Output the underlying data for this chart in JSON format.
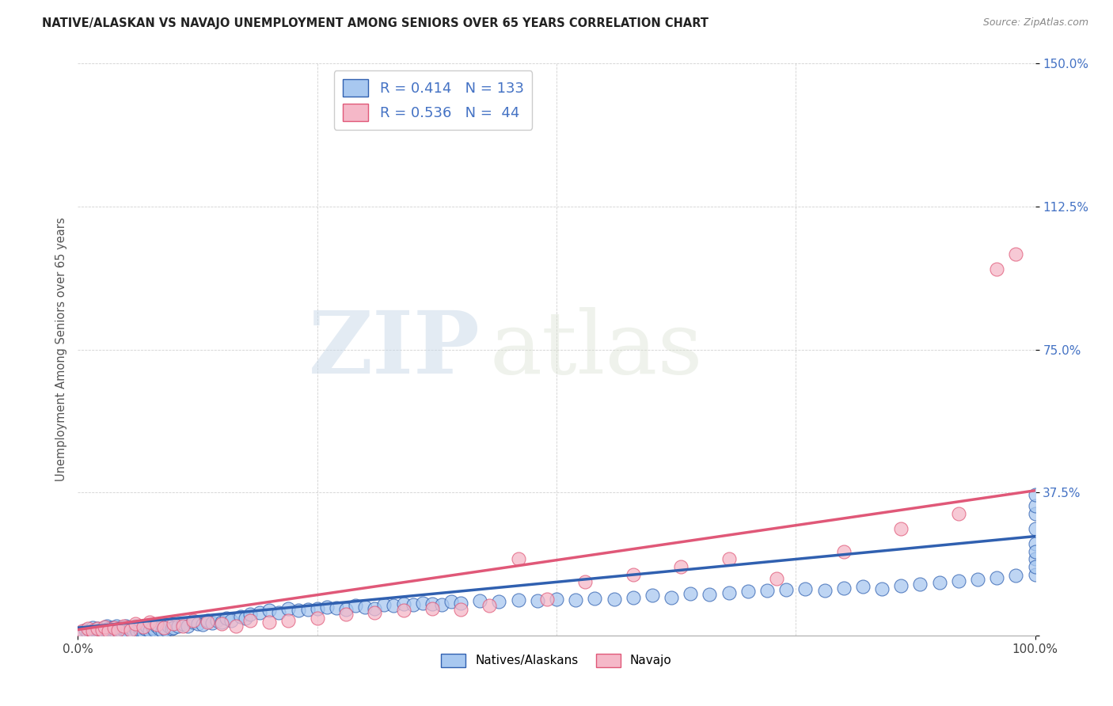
{
  "title": "NATIVE/ALASKAN VS NAVAJO UNEMPLOYMENT AMONG SENIORS OVER 65 YEARS CORRELATION CHART",
  "source": "Source: ZipAtlas.com",
  "ylabel": "Unemployment Among Seniors over 65 years",
  "xlim": [
    0.0,
    1.0
  ],
  "ylim": [
    0.0,
    1.5
  ],
  "xticks": [
    0.0,
    1.0
  ],
  "xticklabels": [
    "0.0%",
    "100.0%"
  ],
  "ytick_positions": [
    0.0,
    0.375,
    0.75,
    1.125,
    1.5
  ],
  "yticklabels": [
    "",
    "37.5%",
    "75.0%",
    "112.5%",
    "150.0%"
  ],
  "native_R": "0.414",
  "native_N": "133",
  "navajo_R": "0.536",
  "navajo_N": "44",
  "native_color": "#A8C8F0",
  "navajo_color": "#F5B8C8",
  "native_line_color": "#3060B0",
  "navajo_line_color": "#E05878",
  "background_color": "#FFFFFF",
  "watermark_zip": "ZIP",
  "watermark_atlas": "atlas",
  "native_x": [
    0.005,
    0.008,
    0.01,
    0.012,
    0.015,
    0.015,
    0.018,
    0.018,
    0.02,
    0.02,
    0.022,
    0.022,
    0.023,
    0.025,
    0.025,
    0.028,
    0.028,
    0.03,
    0.03,
    0.03,
    0.032,
    0.032,
    0.035,
    0.035,
    0.038,
    0.038,
    0.04,
    0.04,
    0.042,
    0.042,
    0.045,
    0.045,
    0.048,
    0.05,
    0.05,
    0.052,
    0.055,
    0.055,
    0.058,
    0.06,
    0.06,
    0.062,
    0.065,
    0.065,
    0.068,
    0.07,
    0.072,
    0.075,
    0.078,
    0.08,
    0.082,
    0.085,
    0.088,
    0.09,
    0.092,
    0.095,
    0.098,
    0.1,
    0.105,
    0.11,
    0.115,
    0.12,
    0.125,
    0.13,
    0.135,
    0.14,
    0.145,
    0.15,
    0.155,
    0.16,
    0.17,
    0.175,
    0.18,
    0.19,
    0.2,
    0.21,
    0.22,
    0.23,
    0.24,
    0.25,
    0.26,
    0.27,
    0.28,
    0.29,
    0.3,
    0.31,
    0.32,
    0.33,
    0.34,
    0.35,
    0.36,
    0.37,
    0.38,
    0.39,
    0.4,
    0.42,
    0.44,
    0.46,
    0.48,
    0.5,
    0.52,
    0.54,
    0.56,
    0.58,
    0.6,
    0.62,
    0.64,
    0.66,
    0.68,
    0.7,
    0.72,
    0.74,
    0.76,
    0.78,
    0.8,
    0.82,
    0.84,
    0.86,
    0.88,
    0.9,
    0.92,
    0.94,
    0.96,
    0.98,
    1.0,
    1.0,
    1.0,
    1.0,
    1.0,
    1.0,
    1.0,
    1.0,
    1.0
  ],
  "native_y": [
    0.01,
    0.015,
    0.008,
    0.012,
    0.01,
    0.02,
    0.008,
    0.015,
    0.01,
    0.018,
    0.008,
    0.012,
    0.015,
    0.01,
    0.018,
    0.008,
    0.02,
    0.01,
    0.015,
    0.025,
    0.008,
    0.018,
    0.012,
    0.02,
    0.01,
    0.015,
    0.008,
    0.025,
    0.01,
    0.018,
    0.012,
    0.02,
    0.015,
    0.01,
    0.025,
    0.008,
    0.015,
    0.02,
    0.01,
    0.018,
    0.025,
    0.012,
    0.015,
    0.022,
    0.01,
    0.018,
    0.025,
    0.012,
    0.02,
    0.015,
    0.025,
    0.018,
    0.012,
    0.02,
    0.015,
    0.025,
    0.018,
    0.02,
    0.025,
    0.03,
    0.025,
    0.035,
    0.03,
    0.028,
    0.04,
    0.032,
    0.038,
    0.035,
    0.045,
    0.04,
    0.05,
    0.045,
    0.055,
    0.06,
    0.065,
    0.06,
    0.07,
    0.065,
    0.068,
    0.07,
    0.075,
    0.072,
    0.068,
    0.078,
    0.075,
    0.07,
    0.08,
    0.078,
    0.082,
    0.08,
    0.085,
    0.082,
    0.08,
    0.088,
    0.085,
    0.09,
    0.088,
    0.092,
    0.09,
    0.095,
    0.092,
    0.098,
    0.095,
    0.1,
    0.105,
    0.1,
    0.11,
    0.108,
    0.112,
    0.115,
    0.118,
    0.12,
    0.122,
    0.118,
    0.125,
    0.128,
    0.122,
    0.13,
    0.135,
    0.138,
    0.142,
    0.148,
    0.152,
    0.158,
    0.16,
    0.24,
    0.28,
    0.32,
    0.2,
    0.22,
    0.18,
    0.34,
    0.37
  ],
  "navajo_x": [
    0.005,
    0.01,
    0.015,
    0.02,
    0.025,
    0.028,
    0.032,
    0.038,
    0.042,
    0.048,
    0.055,
    0.06,
    0.068,
    0.075,
    0.082,
    0.09,
    0.1,
    0.11,
    0.12,
    0.135,
    0.15,
    0.165,
    0.18,
    0.2,
    0.22,
    0.25,
    0.28,
    0.31,
    0.34,
    0.37,
    0.4,
    0.43,
    0.46,
    0.49,
    0.53,
    0.58,
    0.63,
    0.68,
    0.73,
    0.8,
    0.86,
    0.92,
    0.96,
    0.98
  ],
  "navajo_y": [
    0.012,
    0.018,
    0.012,
    0.018,
    0.015,
    0.022,
    0.012,
    0.02,
    0.015,
    0.025,
    0.015,
    0.03,
    0.022,
    0.035,
    0.028,
    0.02,
    0.03,
    0.025,
    0.04,
    0.035,
    0.03,
    0.025,
    0.04,
    0.035,
    0.04,
    0.045,
    0.055,
    0.06,
    0.065,
    0.07,
    0.068,
    0.078,
    0.2,
    0.095,
    0.14,
    0.16,
    0.18,
    0.2,
    0.15,
    0.22,
    0.28,
    0.32,
    0.96,
    1.0
  ],
  "native_reg": [
    0.02,
    0.26
  ],
  "navajo_reg": [
    0.015,
    0.38
  ]
}
